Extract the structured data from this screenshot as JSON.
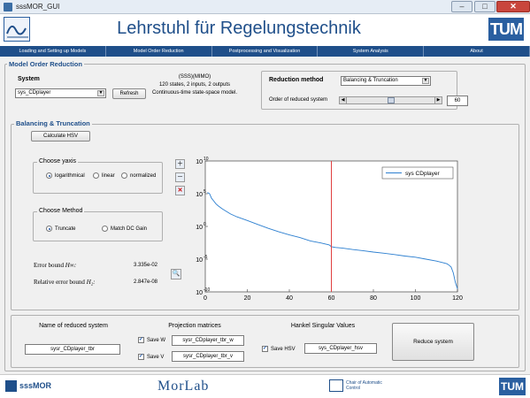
{
  "window": {
    "title": "sssMOR_GUI",
    "min": "–",
    "max": "□",
    "close": "✕"
  },
  "header": {
    "title": "Lehrstuhl für Regelungstechnik",
    "logo_right": "TUM"
  },
  "menu": [
    "Loading and Setting up Models",
    "Model Order Reduction",
    "Postprocessing and Visualization",
    "System Analysis",
    "About"
  ],
  "mor": {
    "panel_title": "Model Order Reduction",
    "system_label": "System",
    "system_value": "sys_CDplayer",
    "refresh": "Refresh",
    "info": [
      "(SSS)(MIMO)",
      "120 states, 2 inputs, 2 outputs",
      "Continuous-time state-space model."
    ],
    "method_label": "Reduction method",
    "method_value": "Balancing & Truncation",
    "order_label": "Order of reduced system",
    "order_value": "60",
    "order_fraction": 0.5
  },
  "bt": {
    "panel_title": "Balancing & Truncation",
    "calc_hsv": "Calculate HSV",
    "yaxis_title": "Choose yaxis",
    "yaxis_options": [
      "logarithmical",
      "linear",
      "normalized"
    ],
    "yaxis_selected": 0,
    "method_title": "Choose Method",
    "method_options": [
      "Truncate",
      "Match DC Gain"
    ],
    "method_selected": 0,
    "err_label": "Error bound",
    "err_sym": "H∞:",
    "err_value": "3.335e-02",
    "rel_label": "Relative error bound",
    "rel_sym": "H₂:",
    "rel_value": "2.847e-08"
  },
  "chart_data": {
    "type": "line",
    "yscale": "log",
    "xlim": [
      0,
      120
    ],
    "ylim": [
      1e-10,
      10000000000.0
    ],
    "xticks": [
      "0",
      "20",
      "40",
      "60",
      "80",
      "100",
      "120"
    ],
    "yticks": [
      "10",
      "10",
      "10",
      "10",
      "10"
    ],
    "ytick_exps": [
      "10",
      "5",
      "0",
      "-5",
      "-10"
    ],
    "legend": "sys CDplayer",
    "vline_x": 60,
    "series": [
      {
        "name": "sys CDplayer",
        "x": [
          1,
          2,
          3,
          4,
          5,
          6,
          8,
          10,
          12,
          15,
          20,
          25,
          30,
          35,
          40,
          45,
          50,
          55,
          59,
          60,
          62,
          65,
          70,
          75,
          80,
          85,
          90,
          95,
          100,
          105,
          110,
          113,
          115,
          116,
          117,
          118,
          119,
          120
        ],
        "y": [
          150000.0,
          100000.0,
          20000.0,
          8000.0,
          3000.0,
          1500.0,
          500,
          200,
          80,
          30,
          8,
          2,
          0.5,
          0.15,
          0.05,
          0.02,
          0.006,
          0.003,
          0.0015,
          0.0008,
          0.0006,
          0.0005,
          0.0003,
          0.0002,
          0.00012,
          8e-05,
          5e-05,
          3e-05,
          2e-05,
          1e-05,
          5e-06,
          3e-06,
          2e-06,
          1.2e-06,
          6e-07,
          8e-08,
          3e-09,
          3e-10
        ]
      }
    ]
  },
  "bottom": {
    "name_title": "Name of reduced system",
    "name_value": "sysr_CDplayer_tbr",
    "proj_title": "Projection matrices",
    "save_w": "Save W",
    "w_value": "sysr_CDplayer_tbr_w",
    "save_v": "Save V",
    "v_value": "sysr_CDplayer_tbr_v",
    "hsv_title": "Hankel Singular Values",
    "save_hsv": "Save HSV",
    "hsv_value": "sys_CDplayer_hsv",
    "reduce": "Reduce system"
  },
  "footer": {
    "left": "sssMOR",
    "center": "MorLab",
    "chair": "Chair of Automatic Control",
    "right": "TUM"
  }
}
